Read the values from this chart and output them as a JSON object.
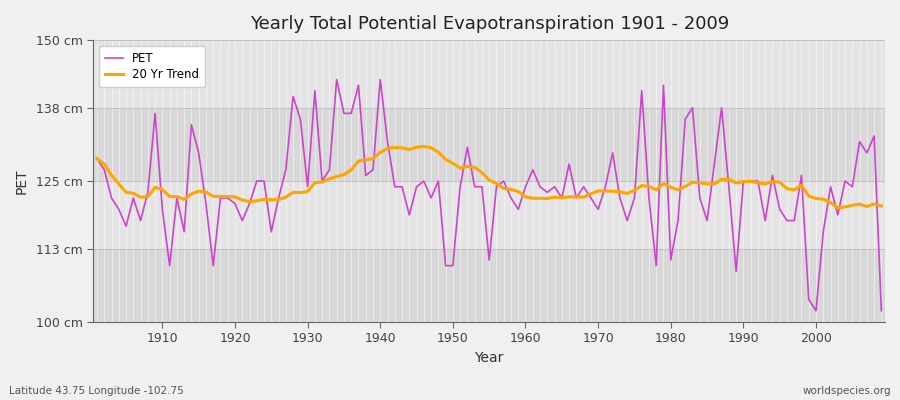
{
  "title": "Yearly Total Potential Evapotranspiration 1901 - 2009",
  "ylabel": "PET",
  "xlabel": "Year",
  "subtitle_left": "Latitude 43.75 Longitude -102.75",
  "subtitle_right": "worldspecies.org",
  "pet_color": "#CC44CC",
  "trend_color": "#FFA500",
  "fig_bg_color": "#F0F0F0",
  "plot_bg_color": "#E0E0E0",
  "ylim": [
    100,
    150
  ],
  "yticks": [
    100,
    113,
    125,
    138,
    150
  ],
  "ytick_labels": [
    "100 cm",
    "113 cm",
    "125 cm",
    "138 cm",
    "150 cm"
  ],
  "years": [
    1901,
    1902,
    1903,
    1904,
    1905,
    1906,
    1907,
    1908,
    1909,
    1910,
    1911,
    1912,
    1913,
    1914,
    1915,
    1916,
    1917,
    1918,
    1919,
    1920,
    1921,
    1922,
    1923,
    1924,
    1925,
    1926,
    1927,
    1928,
    1929,
    1930,
    1931,
    1932,
    1933,
    1934,
    1935,
    1936,
    1937,
    1938,
    1939,
    1940,
    1941,
    1942,
    1943,
    1944,
    1945,
    1946,
    1947,
    1948,
    1949,
    1950,
    1951,
    1952,
    1953,
    1954,
    1955,
    1956,
    1957,
    1958,
    1959,
    1960,
    1961,
    1962,
    1963,
    1964,
    1965,
    1966,
    1967,
    1968,
    1969,
    1970,
    1971,
    1972,
    1973,
    1974,
    1975,
    1976,
    1977,
    1978,
    1979,
    1980,
    1981,
    1982,
    1983,
    1984,
    1985,
    1986,
    1987,
    1988,
    1989,
    1990,
    1991,
    1992,
    1993,
    1994,
    1995,
    1996,
    1997,
    1998,
    1999,
    2000,
    2001,
    2002,
    2003,
    2004,
    2005,
    2006,
    2007,
    2008,
    2009
  ],
  "pet_values": [
    129,
    127,
    122,
    120,
    117,
    122,
    118,
    123,
    137,
    120,
    110,
    122,
    116,
    135,
    130,
    121,
    110,
    122,
    122,
    121,
    118,
    121,
    125,
    125,
    116,
    122,
    127,
    140,
    136,
    124,
    141,
    125,
    127,
    143,
    137,
    137,
    142,
    126,
    127,
    143,
    132,
    124,
    124,
    119,
    124,
    125,
    122,
    125,
    110,
    110,
    124,
    131,
    124,
    124,
    111,
    124,
    125,
    122,
    120,
    124,
    127,
    124,
    123,
    124,
    122,
    128,
    122,
    124,
    122,
    120,
    124,
    130,
    122,
    118,
    122,
    141,
    122,
    110,
    142,
    111,
    118,
    136,
    138,
    122,
    118,
    128,
    138,
    124,
    109,
    125,
    125,
    125,
    118,
    126,
    120,
    118,
    118,
    126,
    104,
    102,
    116,
    124,
    119,
    125,
    124,
    132,
    130,
    133,
    102
  ],
  "trend_window": 20,
  "band_colors": [
    "#D8D8D8",
    "#E4E4E4"
  ]
}
